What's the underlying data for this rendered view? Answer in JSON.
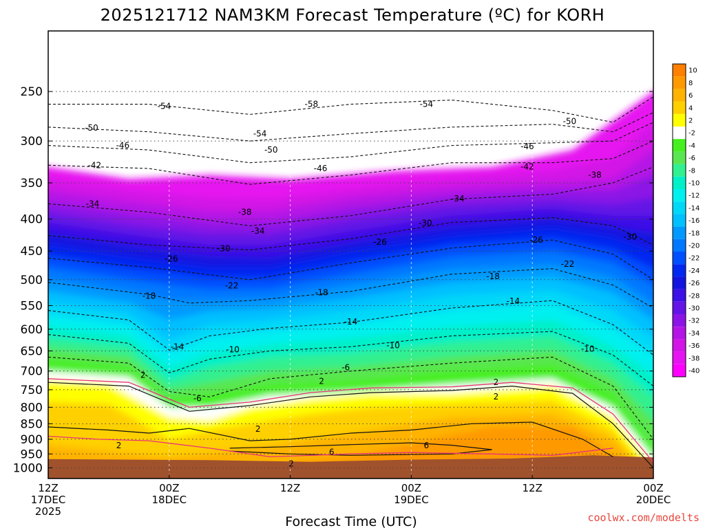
{
  "page": {
    "title": "2025121712 NAM3KM Forecast Temperature (ºC) for KORH",
    "xlabel": "Forecast Time (UTC)",
    "credit": "coolwx.com/modelts"
  },
  "chart_data": {
    "type": "heatmap",
    "title": "2025121712 NAM3KM Forecast Temperature (ºC) for KORH",
    "xlabel": "Forecast Time (UTC)",
    "ylabel": "",
    "x_ticks": [
      {
        "hour": 0,
        "lines": [
          "12Z",
          "17DEC",
          "2025"
        ]
      },
      {
        "hour": 12,
        "lines": [
          "00Z",
          "18DEC"
        ]
      },
      {
        "hour": 24,
        "lines": [
          "12Z"
        ]
      },
      {
        "hour": 36,
        "lines": [
          "00Z",
          "19DEC"
        ]
      },
      {
        "hour": 48,
        "lines": [
          "12Z"
        ]
      },
      {
        "hour": 60,
        "lines": [
          "00Z",
          "20DEC"
        ]
      }
    ],
    "xlim": [
      0,
      60
    ],
    "y_ticks": [
      250,
      300,
      350,
      400,
      450,
      500,
      550,
      600,
      650,
      700,
      750,
      800,
      850,
      900,
      950,
      1000
    ],
    "ylim": [
      200,
      1040
    ],
    "y_scale": "log",
    "grid": true,
    "colorbar_levels": [
      10,
      8,
      6,
      4,
      2,
      -2,
      -4,
      -6,
      -8,
      -10,
      -12,
      -14,
      -16,
      -18,
      -20,
      -22,
      -24,
      -26,
      -28,
      -30,
      -32,
      -34,
      -36,
      -38,
      -40
    ],
    "colorbar_colors": [
      "#ff8000",
      "#ff9900",
      "#ffb300",
      "#ffd000",
      "#ffff00",
      "#ffffff",
      "#46f01e",
      "#5ae650",
      "#30f090",
      "#00f0c8",
      "#00f0f0",
      "#00d8f8",
      "#00c0ff",
      "#0099ff",
      "#0078ff",
      "#0050ff",
      "#0028f0",
      "#1414e0",
      "#3c10e6",
      "#6414e6",
      "#8c14e6",
      "#b414e6",
      "#d214e6",
      "#e614f0",
      "#ff00ff"
    ],
    "ground_color": "#a0522d",
    "contour_labels": [
      {
        "text": "-58",
        "hour": 26.1,
        "p": 262
      },
      {
        "text": "-54",
        "hour": 11.5,
        "p": 264
      },
      {
        "text": "-54",
        "hour": 21.0,
        "p": 292
      },
      {
        "text": "-54",
        "hour": 37.5,
        "p": 262
      },
      {
        "text": "-50",
        "hour": 4.3,
        "p": 286
      },
      {
        "text": "-50",
        "hour": 22.1,
        "p": 310
      },
      {
        "text": "-50",
        "hour": 51.7,
        "p": 279
      },
      {
        "text": "-46",
        "hour": 7.4,
        "p": 305
      },
      {
        "text": "-46",
        "hour": 27.0,
        "p": 332
      },
      {
        "text": "-46",
        "hour": 47.5,
        "p": 306
      },
      {
        "text": "-42",
        "hour": 4.6,
        "p": 328
      },
      {
        "text": "-42",
        "hour": 47.5,
        "p": 330
      },
      {
        "text": "-38",
        "hour": 19.5,
        "p": 390
      },
      {
        "text": "-38",
        "hour": 54.2,
        "p": 340
      },
      {
        "text": "-34",
        "hour": 4.4,
        "p": 378
      },
      {
        "text": "-34",
        "hour": 20.8,
        "p": 418
      },
      {
        "text": "-34",
        "hour": 40.6,
        "p": 371
      },
      {
        "text": "-30",
        "hour": 17.4,
        "p": 446
      },
      {
        "text": "-30",
        "hour": 37.4,
        "p": 406
      },
      {
        "text": "-30",
        "hour": 57.7,
        "p": 427
      },
      {
        "text": "-26",
        "hour": 12.2,
        "p": 463
      },
      {
        "text": "-26",
        "hour": 32.9,
        "p": 435
      },
      {
        "text": "-26",
        "hour": 48.4,
        "p": 432
      },
      {
        "text": "-22",
        "hour": 18.2,
        "p": 511
      },
      {
        "text": "-22",
        "hour": 51.5,
        "p": 472
      },
      {
        "text": "-18",
        "hour": 10.0,
        "p": 531
      },
      {
        "text": "-18",
        "hour": 27.1,
        "p": 524
      },
      {
        "text": "-18",
        "hour": 44.1,
        "p": 494
      },
      {
        "text": "-14",
        "hour": 12.8,
        "p": 640
      },
      {
        "text": "-14",
        "hour": 30.0,
        "p": 584
      },
      {
        "text": "-14",
        "hour": 46.1,
        "p": 541
      },
      {
        "text": "-10",
        "hour": 18.3,
        "p": 647
      },
      {
        "text": "-10",
        "hour": 34.2,
        "p": 637
      },
      {
        "text": "-10",
        "hour": 53.5,
        "p": 645
      },
      {
        "text": "-6",
        "hour": 14.8,
        "p": 774
      },
      {
        "text": "-6",
        "hour": 29.5,
        "p": 691
      },
      {
        "text": "2",
        "hour": 9.4,
        "p": 710
      },
      {
        "text": "2",
        "hour": 27.1,
        "p": 727
      },
      {
        "text": "2",
        "hour": 44.4,
        "p": 730
      },
      {
        "text": "2",
        "hour": 44.4,
        "p": 769
      },
      {
        "text": "2",
        "hour": 20.8,
        "p": 867
      },
      {
        "text": "2",
        "hour": 7.0,
        "p": 921
      },
      {
        "text": "2",
        "hour": 24.1,
        "p": 985
      },
      {
        "text": "6",
        "hour": 28.1,
        "p": 943
      },
      {
        "text": "6",
        "hour": 37.5,
        "p": 921
      }
    ]
  }
}
